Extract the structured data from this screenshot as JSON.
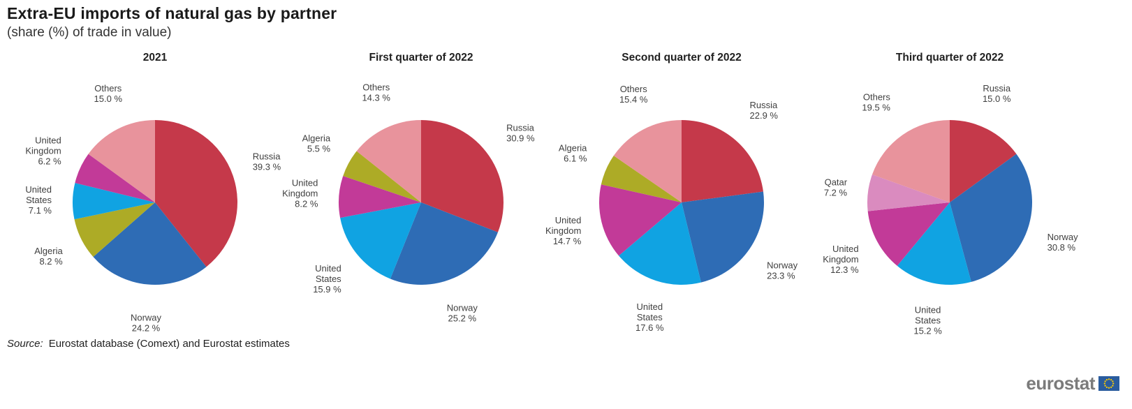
{
  "page": {
    "title": "Extra-EU imports of natural gas by partner",
    "subtitle": "(share (%) of trade in value)",
    "source_prefix": "Source:",
    "source_text": "Eurostat database (Comext) and Eurostat estimates",
    "logo_text": "eurostat"
  },
  "palette": {
    "Russia": "#c5394a",
    "Norway": "#2e6cb5",
    "United States": "#10a3e2",
    "United Kingdom": "#c23a98",
    "Algeria": "#adab26",
    "Qatar": "#da8bbf",
    "Others": "#e8939c"
  },
  "chart_data": [
    {
      "type": "pie",
      "title": "2021",
      "unit": "%",
      "slices": [
        {
          "label": "Russia",
          "lines": [
            "Russia"
          ],
          "value": 39.3,
          "value_label": "39.3 %"
        },
        {
          "label": "Norway",
          "lines": [
            "Norway"
          ],
          "value": 24.2,
          "value_label": "24.2 %"
        },
        {
          "label": "Algeria",
          "lines": [
            "Algeria"
          ],
          "value": 8.2,
          "value_label": "8.2 %"
        },
        {
          "label": "United States",
          "lines": [
            "United",
            "States"
          ],
          "value": 7.1,
          "value_label": "7.1 %"
        },
        {
          "label": "United Kingdom",
          "lines": [
            "United",
            "Kingdom"
          ],
          "value": 6.2,
          "value_label": "6.2 %"
        },
        {
          "label": "Others",
          "lines": [
            "Others"
          ],
          "value": 15.0,
          "value_label": "15.0 %"
        }
      ]
    },
    {
      "type": "pie",
      "title": "First quarter of 2022",
      "unit": "%",
      "slices": [
        {
          "label": "Russia",
          "lines": [
            "Russia"
          ],
          "value": 30.9,
          "value_label": "30.9 %"
        },
        {
          "label": "Norway",
          "lines": [
            "Norway"
          ],
          "value": 25.2,
          "value_label": "25.2 %"
        },
        {
          "label": "United States",
          "lines": [
            "United",
            "States"
          ],
          "value": 15.9,
          "value_label": "15.9 %"
        },
        {
          "label": "United Kingdom",
          "lines": [
            "United",
            "Kingdom"
          ],
          "value": 8.2,
          "value_label": "8.2 %"
        },
        {
          "label": "Algeria",
          "lines": [
            "Algeria"
          ],
          "value": 5.5,
          "value_label": "5.5 %"
        },
        {
          "label": "Others",
          "lines": [
            "Others"
          ],
          "value": 14.3,
          "value_label": "14.3 %"
        }
      ]
    },
    {
      "type": "pie",
      "title": "Second quarter of 2022",
      "unit": "%",
      "slices": [
        {
          "label": "Russia",
          "lines": [
            "Russia"
          ],
          "value": 22.9,
          "value_label": "22.9 %"
        },
        {
          "label": "Norway",
          "lines": [
            "Norway"
          ],
          "value": 23.3,
          "value_label": "23.3 %"
        },
        {
          "label": "United States",
          "lines": [
            "United",
            "States"
          ],
          "value": 17.6,
          "value_label": "17.6 %"
        },
        {
          "label": "United Kingdom",
          "lines": [
            "United",
            "Kingdom"
          ],
          "value": 14.7,
          "value_label": "14.7 %"
        },
        {
          "label": "Algeria",
          "lines": [
            "Algeria"
          ],
          "value": 6.1,
          "value_label": "6.1 %"
        },
        {
          "label": "Others",
          "lines": [
            "Others"
          ],
          "value": 15.4,
          "value_label": "15.4 %"
        }
      ]
    },
    {
      "type": "pie",
      "title": "Third quarter of 2022",
      "unit": "%",
      "slices": [
        {
          "label": "Russia",
          "lines": [
            "Russia"
          ],
          "value": 15.0,
          "value_label": "15.0 %"
        },
        {
          "label": "Norway",
          "lines": [
            "Norway"
          ],
          "value": 30.8,
          "value_label": "30.8 %"
        },
        {
          "label": "United States",
          "lines": [
            "United",
            "States"
          ],
          "value": 15.2,
          "value_label": "15.2 %"
        },
        {
          "label": "United Kingdom",
          "lines": [
            "United",
            "Kingdom"
          ],
          "value": 12.3,
          "value_label": "12.3 %"
        },
        {
          "label": "Qatar",
          "lines": [
            "Qatar"
          ],
          "value": 7.2,
          "value_label": "7.2 %"
        },
        {
          "label": "Others",
          "lines": [
            "Others"
          ],
          "value": 19.5,
          "value_label": "19.5 %"
        }
      ]
    }
  ]
}
